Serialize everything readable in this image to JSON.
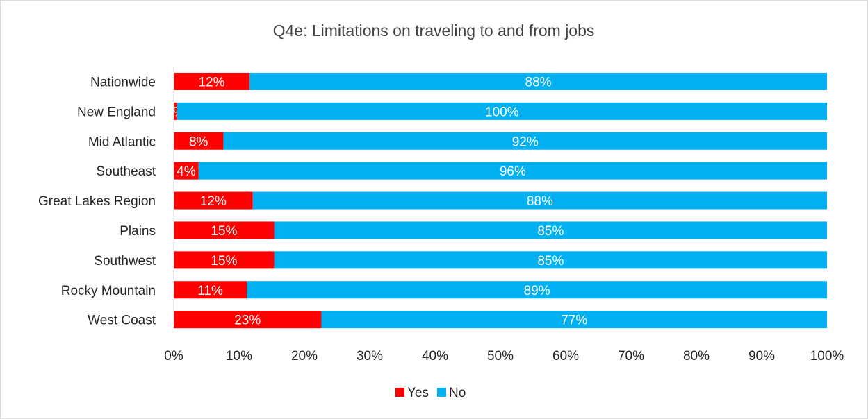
{
  "chart_data": {
    "type": "bar",
    "orientation": "horizontal",
    "stacked": true,
    "title": "Q4e: Limitations on traveling to and from jobs",
    "categories": [
      "Nationwide",
      "New England",
      "Mid Atlantic",
      "Southeast",
      "Great Lakes Region",
      "Plains",
      "Southwest",
      "Rocky Mountain",
      "West Coast"
    ],
    "series": [
      {
        "name": "Yes",
        "color": "#ff0000",
        "values": [
          11.6,
          0.5,
          7.6,
          3.8,
          12.1,
          15.4,
          15.4,
          11.2,
          22.6
        ],
        "labels": [
          "12%",
          "0%",
          "8%",
          "4%",
          "12%",
          "15%",
          "15%",
          "11%",
          "23%"
        ]
      },
      {
        "name": "No",
        "color": "#00b0f0",
        "values": [
          88.4,
          99.5,
          92.4,
          96.2,
          87.9,
          84.6,
          84.6,
          88.8,
          77.4
        ],
        "labels": [
          "88%",
          "100%",
          "92%",
          "96%",
          "88%",
          "85%",
          "85%",
          "89%",
          "77%"
        ]
      }
    ],
    "xlim": [
      0,
      100
    ],
    "x_ticks": [
      "0%",
      "10%",
      "20%",
      "30%",
      "40%",
      "50%",
      "60%",
      "70%",
      "80%",
      "90%",
      "100%"
    ],
    "grid": false,
    "legend_position": "bottom"
  }
}
